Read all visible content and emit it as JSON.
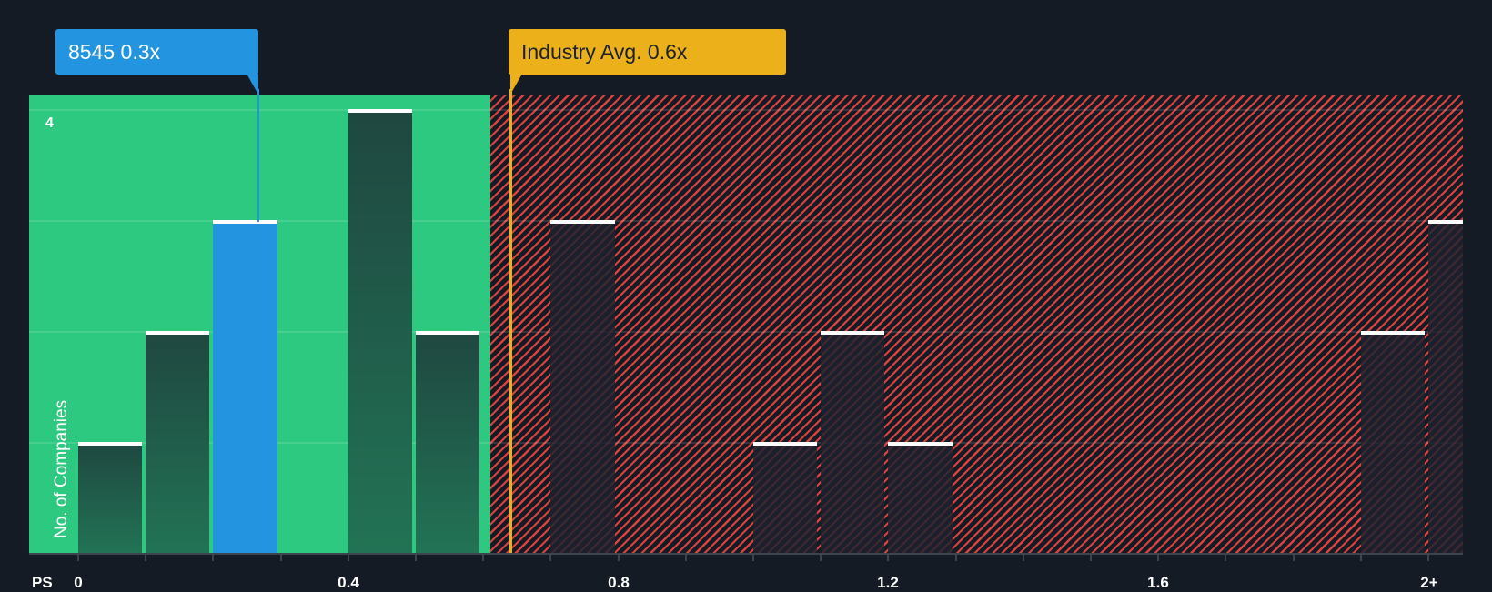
{
  "chart_data": {
    "type": "bar",
    "title": "",
    "xlabel": "PS",
    "ylabel": "No. of Companies",
    "x_ticks": [
      "0",
      "0.4",
      "0.8",
      "1.2",
      "1.6",
      "2+"
    ],
    "y_ticks_labeled": [
      "4"
    ],
    "ylim": [
      0,
      4
    ],
    "xlim": [
      -0.07,
      2.05
    ],
    "bin_width": 0.1,
    "bins": [
      {
        "from": 0.0,
        "to": 0.1,
        "count": 1,
        "zone": "undervalued"
      },
      {
        "from": 0.1,
        "to": 0.2,
        "count": 2,
        "zone": "undervalued"
      },
      {
        "from": 0.2,
        "to": 0.3,
        "count": 3,
        "zone": "undervalued",
        "highlight": true
      },
      {
        "from": 0.3,
        "to": 0.4,
        "count": 0,
        "zone": "undervalued"
      },
      {
        "from": 0.4,
        "to": 0.5,
        "count": 4,
        "zone": "undervalued"
      },
      {
        "from": 0.5,
        "to": 0.6,
        "count": 2,
        "zone": "undervalued"
      },
      {
        "from": 0.7,
        "to": 0.8,
        "count": 3,
        "zone": "overvalued"
      },
      {
        "from": 1.0,
        "to": 1.1,
        "count": 1,
        "zone": "overvalued"
      },
      {
        "from": 1.1,
        "to": 1.2,
        "count": 2,
        "zone": "overvalued"
      },
      {
        "from": 1.2,
        "to": 1.3,
        "count": 1,
        "zone": "overvalued"
      },
      {
        "from": 1.9,
        "to": 2.0,
        "count": 2,
        "zone": "overvalued"
      },
      {
        "from": 2.0,
        "to": null,
        "count": 3,
        "zone": "overvalued",
        "label": "2+"
      }
    ],
    "annotations": [
      {
        "label": "8545 0.3x",
        "value": 0.27,
        "color": "#2394df"
      },
      {
        "label": "Industry Avg. 0.6x",
        "value": 0.64,
        "color": "#ecb01a"
      }
    ],
    "zones": {
      "green_until": 0.6,
      "green_color": "#2ec980",
      "red_hatch_color": "#d9423f"
    },
    "grid": true,
    "legend": null
  },
  "callouts": {
    "company": "8545 0.3x",
    "industry": "Industry Avg. 0.6x"
  },
  "axis": {
    "x_title": "PS",
    "y_title": "No. of Companies",
    "y_max_label": "4",
    "x_labels": [
      "0",
      "0.4",
      "0.8",
      "1.2",
      "1.6",
      "2+"
    ]
  },
  "colors": {
    "background": "#151b24",
    "green_zone": "#2ec980",
    "highlight_bar": "#2394df",
    "industry_line": "#ecb01a",
    "hatch": "#d9423f"
  }
}
